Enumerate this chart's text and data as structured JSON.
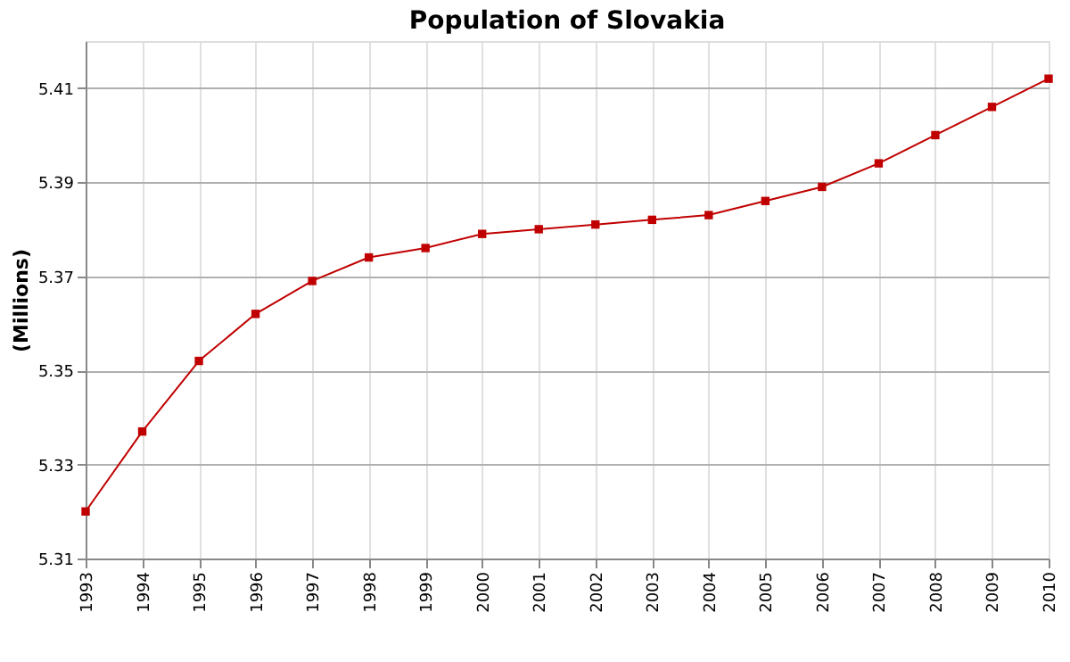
{
  "chart_data": {
    "type": "line",
    "title": "Population of Slovakia",
    "ylabel": "(Millions)",
    "categories": [
      "1993",
      "1994",
      "1995",
      "1996",
      "1997",
      "1998",
      "1999",
      "2000",
      "2001",
      "2002",
      "2003",
      "2004",
      "2005",
      "2006",
      "2007",
      "2008",
      "2009",
      "2010"
    ],
    "series": [
      {
        "color": "#c00000",
        "values": [
          5.32,
          5.337,
          5.352,
          5.362,
          5.369,
          5.374,
          5.376,
          5.379,
          5.38,
          5.381,
          5.382,
          5.383,
          5.386,
          5.389,
          5.394,
          5.4,
          5.406,
          5.412
        ]
      }
    ],
    "ylim": [
      5.31,
      5.42
    ],
    "yticks": [
      5.31,
      5.33,
      5.35,
      5.37,
      5.39,
      5.41
    ],
    "grid": true,
    "marker": "square",
    "line_style": "solid"
  }
}
